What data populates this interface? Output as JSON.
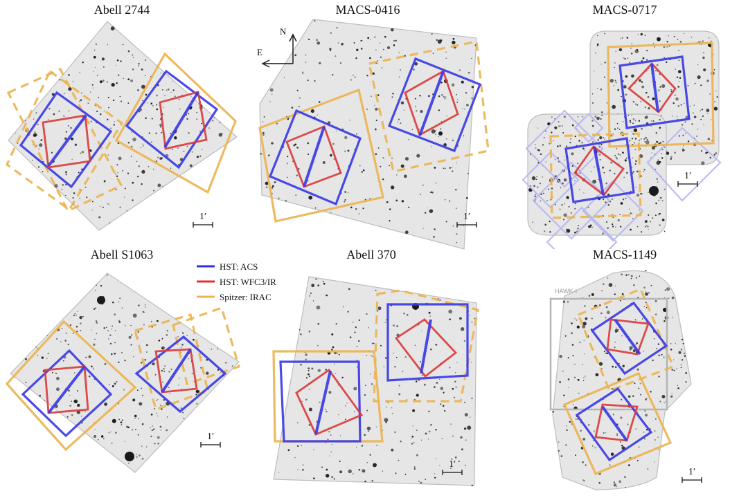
{
  "panels": [
    {
      "name": "Abell 2744"
    },
    {
      "name": "MACS-0416"
    },
    {
      "name": "MACS-0717"
    },
    {
      "name": "Abell S1063"
    },
    {
      "name": "Abell 370"
    },
    {
      "name": "MACS-1149"
    }
  ],
  "scale_bar_label": "1′",
  "compass": {
    "north": "N",
    "east": "E"
  },
  "legend": [
    {
      "label": "HST: ACS",
      "color": "#2f2fe8"
    },
    {
      "label": "HST: WFC3/IR",
      "color": "#e0302f"
    },
    {
      "label": "Spitzer: IRAC",
      "color": "#ecb451"
    }
  ],
  "hawk_label": "HAWK-I",
  "colors": {
    "acs": "#3b3be6",
    "wfc3": "#dc3c3c",
    "irac": "#ecb451",
    "hawk": "#b4b4b4",
    "mosaic_bg": "#e6e6e6",
    "mosaic_edge": "#bdbdbd",
    "sources": "#1a1a1a"
  }
}
